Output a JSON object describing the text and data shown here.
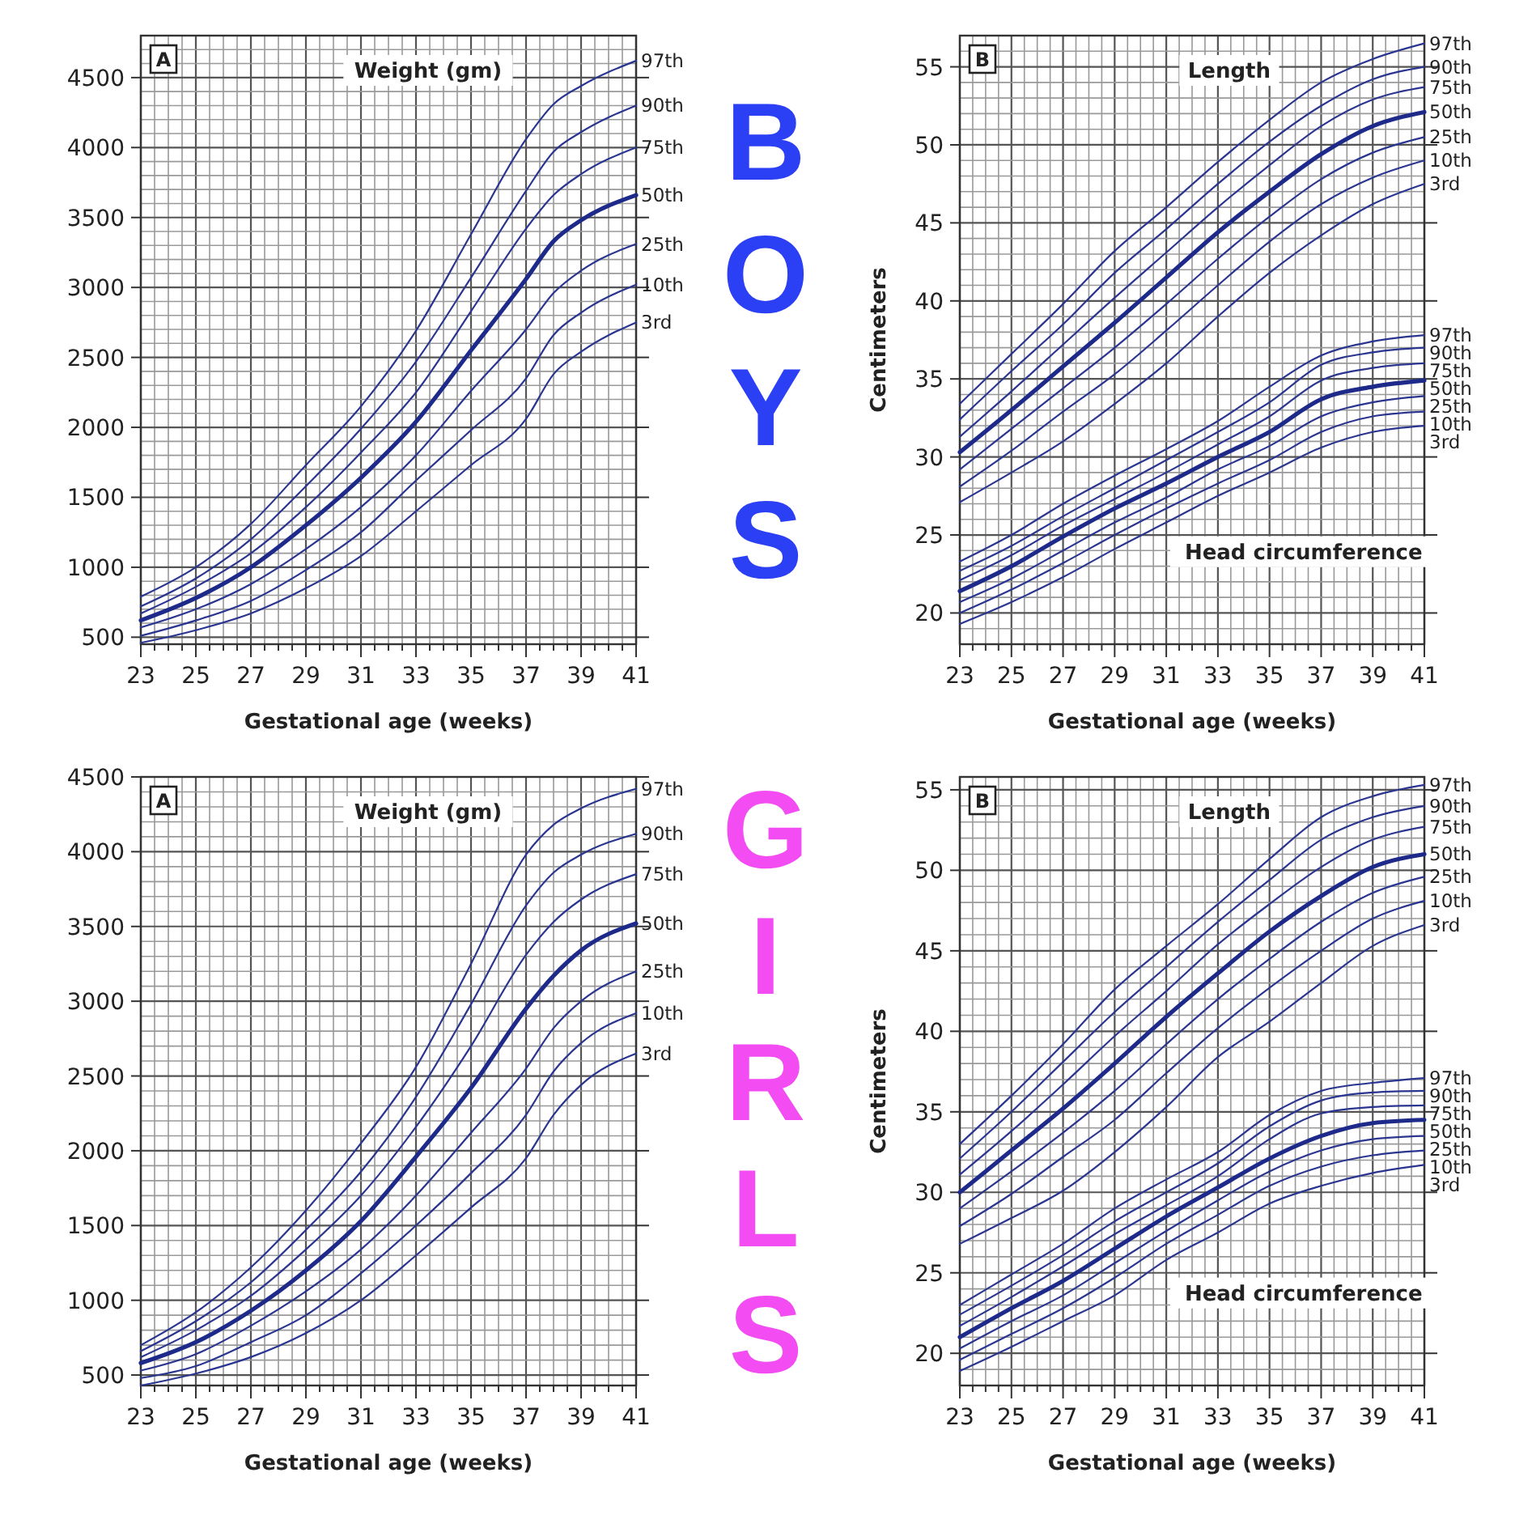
{
  "chart_data": [
    {
      "type": "line",
      "title": "Weight (gm)",
      "xlabel": "Gestational age (weeks)",
      "annotations": [
        "A",
        "BOYS"
      ],
      "grid": true,
      "marker": "none",
      "line_style": "solid",
      "x": [
        23,
        25,
        27,
        29,
        31,
        33,
        35,
        37,
        38,
        39,
        41
      ],
      "xlim": [
        23,
        41
      ],
      "xticks": [
        23,
        {
          "value": 23.5,
          "label": null
        },
        {
          "value": 24,
          "label": null
        },
        {
          "value": 24.5,
          "label": null
        },
        25,
        {
          "value": 25.5,
          "label": null
        },
        {
          "value": 26,
          "label": null
        },
        {
          "value": 26.5,
          "label": null
        },
        27,
        {
          "value": 27.5,
          "label": null
        },
        {
          "value": 28,
          "label": null
        },
        {
          "value": 28.5,
          "label": null
        },
        29,
        {
          "value": 29.5,
          "label": null
        },
        {
          "value": 30,
          "label": null
        },
        {
          "value": 30.5,
          "label": null
        },
        31,
        {
          "value": 31.5,
          "label": null
        },
        {
          "value": 32,
          "label": null
        },
        {
          "value": 32.5,
          "label": null
        },
        33,
        {
          "value": 33.5,
          "label": null
        },
        {
          "value": 34,
          "label": null
        },
        {
          "value": 34.5,
          "label": null
        },
        35,
        {
          "value": 35.5,
          "label": null
        },
        {
          "value": 36,
          "label": null
        },
        {
          "value": 36.5,
          "label": null
        },
        37,
        {
          "value": 37.5,
          "label": null
        },
        {
          "value": 38,
          "label": null
        },
        {
          "value": 38.5,
          "label": null
        },
        39,
        {
          "value": 39.5,
          "label": null
        },
        {
          "value": 40,
          "label": null
        },
        {
          "value": 40.5,
          "label": null
        },
        41
      ],
      "ylim": [
        450,
        4800
      ],
      "yticks": [
        500,
        {
          "value": 600,
          "label": null
        },
        {
          "value": 700,
          "label": null
        },
        {
          "value": 800,
          "label": null
        },
        {
          "value": 900,
          "label": null
        },
        1000,
        {
          "value": 1100,
          "label": null
        },
        {
          "value": 1200,
          "label": null
        },
        {
          "value": 1300,
          "label": null
        },
        {
          "value": 1400,
          "label": null
        },
        1500,
        {
          "value": 1600,
          "label": null
        },
        {
          "value": 1700,
          "label": null
        },
        {
          "value": 1800,
          "label": null
        },
        {
          "value": 1900,
          "label": null
        },
        2000,
        {
          "value": 2100,
          "label": null
        },
        {
          "value": 2200,
          "label": null
        },
        {
          "value": 2300,
          "label": null
        },
        {
          "value": 2400,
          "label": null
        },
        2500,
        {
          "value": 2600,
          "label": null
        },
        {
          "value": 2700,
          "label": null
        },
        {
          "value": 2800,
          "label": null
        },
        {
          "value": 2900,
          "label": null
        },
        3000,
        {
          "value": 3100,
          "label": null
        },
        {
          "value": 3200,
          "label": null
        },
        {
          "value": 3300,
          "label": null
        },
        {
          "value": 3400,
          "label": null
        },
        3500,
        {
          "value": 3600,
          "label": null
        },
        {
          "value": 3700,
          "label": null
        },
        {
          "value": 3800,
          "label": null
        },
        {
          "value": 3900,
          "label": null
        },
        4000,
        {
          "value": 4100,
          "label": null
        },
        {
          "value": 4200,
          "label": null
        },
        {
          "value": 4300,
          "label": null
        },
        {
          "value": 4400,
          "label": null
        },
        4500,
        {
          "value": 4600,
          "label": null
        },
        {
          "value": 4700,
          "label": null
        }
      ],
      "series": [
        {
          "name": "97th",
          "color": "#2a3590",
          "values": [
            790,
            1000,
            1310,
            1730,
            2150,
            2690,
            3380,
            4060,
            4310,
            4440,
            4620
          ]
        },
        {
          "name": "90th",
          "color": "#2a3590",
          "values": [
            720,
            920,
            1200,
            1580,
            1990,
            2470,
            3070,
            3690,
            3970,
            4110,
            4300
          ]
        },
        {
          "name": "75th",
          "color": "#2a3590",
          "values": [
            670,
            860,
            1100,
            1430,
            1820,
            2250,
            2830,
            3420,
            3660,
            3810,
            4000
          ]
        },
        {
          "name": "50th",
          "color": "#1e2a8a",
          "values": [
            620,
            780,
            1000,
            1300,
            1640,
            2040,
            2550,
            3060,
            3330,
            3480,
            3660
          ]
        },
        {
          "name": "25th",
          "color": "#2a3590",
          "values": [
            570,
            700,
            880,
            1130,
            1430,
            1800,
            2260,
            2700,
            2960,
            3120,
            3310
          ]
        },
        {
          "name": "10th",
          "color": "#2a3590",
          "values": [
            510,
            620,
            760,
            980,
            1250,
            1620,
            1980,
            2350,
            2660,
            2820,
            3020
          ]
        },
        {
          "name": "3rd",
          "color": "#2a3590",
          "values": [
            460,
            550,
            670,
            850,
            1080,
            1400,
            1730,
            2060,
            2380,
            2540,
            2750
          ]
        }
      ]
    },
    {
      "type": "line",
      "title": "Length",
      "xlabel": "Gestational age (weeks)",
      "ylabel": "Centimeters",
      "annotations": [
        "B",
        "Head circumference"
      ],
      "grid": true,
      "marker": "none",
      "line_style": "solid",
      "x": [
        23,
        25,
        27,
        29,
        31,
        33,
        35,
        37,
        39,
        41
      ],
      "xlim": [
        23,
        41
      ],
      "xticks": [
        23,
        {
          "value": 23.5,
          "label": null
        },
        {
          "value": 24,
          "label": null
        },
        {
          "value": 24.5,
          "label": null
        },
        25,
        {
          "value": 25.5,
          "label": null
        },
        {
          "value": 26,
          "label": null
        },
        {
          "value": 26.5,
          "label": null
        },
        27,
        {
          "value": 27.5,
          "label": null
        },
        {
          "value": 28,
          "label": null
        },
        {
          "value": 28.5,
          "label": null
        },
        29,
        {
          "value": 29.5,
          "label": null
        },
        {
          "value": 30,
          "label": null
        },
        {
          "value": 30.5,
          "label": null
        },
        31,
        {
          "value": 31.5,
          "label": null
        },
        {
          "value": 32,
          "label": null
        },
        {
          "value": 32.5,
          "label": null
        },
        33,
        {
          "value": 33.5,
          "label": null
        },
        {
          "value": 34,
          "label": null
        },
        {
          "value": 34.5,
          "label": null
        },
        35,
        {
          "value": 35.5,
          "label": null
        },
        {
          "value": 36,
          "label": null
        },
        {
          "value": 36.5,
          "label": null
        },
        37,
        {
          "value": 37.5,
          "label": null
        },
        {
          "value": 38,
          "label": null
        },
        {
          "value": 38.5,
          "label": null
        },
        39,
        {
          "value": 39.5,
          "label": null
        },
        {
          "value": 40,
          "label": null
        },
        {
          "value": 40.5,
          "label": null
        },
        41
      ],
      "ylim": [
        18.0,
        57
      ],
      "yticks": [
        {
          "value": 19,
          "label": null
        },
        20,
        {
          "value": 21,
          "label": null
        },
        {
          "value": 22,
          "label": null
        },
        {
          "value": 23,
          "label": null
        },
        {
          "value": 24,
          "label": null
        },
        25,
        {
          "value": 26,
          "label": null
        },
        {
          "value": 27,
          "label": null
        },
        {
          "value": 28,
          "label": null
        },
        {
          "value": 29,
          "label": null
        },
        30,
        {
          "value": 31,
          "label": null
        },
        {
          "value": 32,
          "label": null
        },
        {
          "value": 33,
          "label": null
        },
        {
          "value": 34,
          "label": null
        },
        35,
        {
          "value": 36,
          "label": null
        },
        {
          "value": 37,
          "label": null
        },
        {
          "value": 38,
          "label": null
        },
        {
          "value": 39,
          "label": null
        },
        40,
        {
          "value": 41,
          "label": null
        },
        {
          "value": 42,
          "label": null
        },
        {
          "value": 43,
          "label": null
        },
        {
          "value": 44,
          "label": null
        },
        45,
        {
          "value": 46,
          "label": null
        },
        {
          "value": 47,
          "label": null
        },
        {
          "value": 48,
          "label": null
        },
        {
          "value": 49,
          "label": null
        },
        50,
        {
          "value": 51,
          "label": null
        },
        {
          "value": 52,
          "label": null
        },
        {
          "value": 53,
          "label": null
        },
        {
          "value": 54,
          "label": null
        },
        55,
        {
          "value": 56,
          "label": null
        }
      ],
      "series": [
        {
          "name": "97th",
          "color": "#2a3590",
          "values": [
            33.4,
            36.6,
            39.8,
            43.2,
            46.0,
            48.9,
            51.6,
            54.0,
            55.5,
            56.5
          ]
        },
        {
          "name": "90th",
          "color": "#2a3590",
          "values": [
            32.4,
            35.5,
            38.5,
            41.8,
            44.6,
            47.5,
            50.2,
            52.5,
            54.2,
            55.0
          ]
        },
        {
          "name": "75th",
          "color": "#2a3590",
          "values": [
            31.3,
            34.2,
            37.2,
            40.2,
            43.1,
            46.0,
            48.7,
            51.2,
            52.9,
            53.7
          ]
        },
        {
          "name": "50th",
          "color": "#1e2a8a",
          "values": [
            30.3,
            33.0,
            35.8,
            38.6,
            41.5,
            44.4,
            47.0,
            49.4,
            51.2,
            52.1
          ]
        },
        {
          "name": "25th",
          "color": "#2a3590",
          "values": [
            29.2,
            31.8,
            34.4,
            37.0,
            39.8,
            42.7,
            45.4,
            47.8,
            49.5,
            50.5
          ]
        },
        {
          "name": "10th",
          "color": "#2a3590",
          "values": [
            28.1,
            30.4,
            32.9,
            35.3,
            38.1,
            41.0,
            43.8,
            46.2,
            47.9,
            49.0
          ]
        },
        {
          "name": "3rd",
          "color": "#2a3590",
          "values": [
            27.1,
            29.0,
            31.0,
            33.4,
            36.0,
            39.0,
            41.8,
            44.2,
            46.2,
            47.5
          ]
        },
        {
          "name": "97th",
          "color": "#2a3590",
          "values": [
            23.3,
            25.0,
            27.0,
            28.8,
            30.5,
            32.3,
            34.5,
            36.5,
            37.4,
            37.8
          ]
        },
        {
          "name": "90th",
          "color": "#2a3590",
          "values": [
            22.7,
            24.3,
            26.2,
            28.0,
            29.8,
            31.6,
            33.5,
            35.9,
            36.7,
            37.0
          ]
        },
        {
          "name": "75th",
          "color": "#2a3590",
          "values": [
            22.1,
            23.7,
            25.6,
            27.3,
            29.0,
            30.8,
            32.6,
            34.9,
            35.7,
            36.0
          ]
        },
        {
          "name": "50th",
          "color": "#1e2a8a",
          "values": [
            21.4,
            23.0,
            24.9,
            26.7,
            28.3,
            30.0,
            31.6,
            33.7,
            34.5,
            34.9
          ]
        },
        {
          "name": "25th",
          "color": "#2a3590",
          "values": [
            20.7,
            22.2,
            24.0,
            25.8,
            27.4,
            29.2,
            30.7,
            32.6,
            33.5,
            33.9
          ]
        },
        {
          "name": "10th",
          "color": "#2a3590",
          "values": [
            20.0,
            21.5,
            23.2,
            25.0,
            26.7,
            28.3,
            29.8,
            31.6,
            32.6,
            32.9
          ]
        },
        {
          "name": "3rd",
          "color": "#2a3590",
          "values": [
            19.3,
            20.7,
            22.3,
            24.1,
            25.8,
            27.5,
            29.0,
            30.6,
            31.6,
            32.0
          ]
        }
      ]
    },
    {
      "type": "line",
      "title": "Weight (gm)",
      "xlabel": "Gestational age (weeks)",
      "annotations": [
        "A",
        "GIRLS"
      ],
      "grid": true,
      "marker": "none",
      "line_style": "solid",
      "x": [
        23,
        25,
        27,
        29,
        31,
        33,
        35,
        37,
        38,
        39,
        41
      ],
      "xlim": [
        23,
        41
      ],
      "xticks": [
        23,
        {
          "value": 23.5,
          "label": null
        },
        {
          "value": 24,
          "label": null
        },
        {
          "value": 24.5,
          "label": null
        },
        25,
        {
          "value": 25.5,
          "label": null
        },
        {
          "value": 26,
          "label": null
        },
        {
          "value": 26.5,
          "label": null
        },
        27,
        {
          "value": 27.5,
          "label": null
        },
        {
          "value": 28,
          "label": null
        },
        {
          "value": 28.5,
          "label": null
        },
        29,
        {
          "value": 29.5,
          "label": null
        },
        {
          "value": 30,
          "label": null
        },
        {
          "value": 30.5,
          "label": null
        },
        31,
        {
          "value": 31.5,
          "label": null
        },
        {
          "value": 32,
          "label": null
        },
        {
          "value": 32.5,
          "label": null
        },
        33,
        {
          "value": 33.5,
          "label": null
        },
        {
          "value": 34,
          "label": null
        },
        {
          "value": 34.5,
          "label": null
        },
        35,
        {
          "value": 35.5,
          "label": null
        },
        {
          "value": 36,
          "label": null
        },
        {
          "value": 36.5,
          "label": null
        },
        37,
        {
          "value": 37.5,
          "label": null
        },
        {
          "value": 38,
          "label": null
        },
        {
          "value": 38.5,
          "label": null
        },
        39,
        {
          "value": 39.5,
          "label": null
        },
        {
          "value": 40,
          "label": null
        },
        {
          "value": 40.5,
          "label": null
        },
        41
      ],
      "ylim": [
        430,
        4500
      ],
      "yticks": [
        500,
        {
          "value": 600,
          "label": null
        },
        {
          "value": 700,
          "label": null
        },
        {
          "value": 800,
          "label": null
        },
        {
          "value": 900,
          "label": null
        },
        1000,
        {
          "value": 1100,
          "label": null
        },
        {
          "value": 1200,
          "label": null
        },
        {
          "value": 1300,
          "label": null
        },
        {
          "value": 1400,
          "label": null
        },
        1500,
        {
          "value": 1600,
          "label": null
        },
        {
          "value": 1700,
          "label": null
        },
        {
          "value": 1800,
          "label": null
        },
        {
          "value": 1900,
          "label": null
        },
        2000,
        {
          "value": 2100,
          "label": null
        },
        {
          "value": 2200,
          "label": null
        },
        {
          "value": 2300,
          "label": null
        },
        {
          "value": 2400,
          "label": null
        },
        2500,
        {
          "value": 2600,
          "label": null
        },
        {
          "value": 2700,
          "label": null
        },
        {
          "value": 2800,
          "label": null
        },
        {
          "value": 2900,
          "label": null
        },
        3000,
        {
          "value": 3100,
          "label": null
        },
        {
          "value": 3200,
          "label": null
        },
        {
          "value": 3300,
          "label": null
        },
        {
          "value": 3400,
          "label": null
        },
        3500,
        {
          "value": 3600,
          "label": null
        },
        {
          "value": 3700,
          "label": null
        },
        {
          "value": 3800,
          "label": null
        },
        {
          "value": 3900,
          "label": null
        },
        4000,
        {
          "value": 4100,
          "label": null
        },
        {
          "value": 4200,
          "label": null
        },
        {
          "value": 4300,
          "label": null
        },
        {
          "value": 4400,
          "label": null
        },
        4500
      ],
      "series": [
        {
          "name": "97th",
          "color": "#2a3590",
          "values": [
            700,
            920,
            1220,
            1600,
            2050,
            2560,
            3250,
            3980,
            4180,
            4290,
            4420
          ]
        },
        {
          "name": "90th",
          "color": "#2a3590",
          "values": [
            660,
            860,
            1120,
            1470,
            1860,
            2360,
            2980,
            3640,
            3860,
            3980,
            4120
          ]
        },
        {
          "name": "75th",
          "color": "#2a3590",
          "values": [
            620,
            800,
            1030,
            1340,
            1700,
            2160,
            2700,
            3310,
            3530,
            3680,
            3850
          ]
        },
        {
          "name": "50th",
          "color": "#1e2a8a",
          "values": [
            580,
            720,
            930,
            1200,
            1530,
            1960,
            2420,
            2950,
            3170,
            3340,
            3520
          ]
        },
        {
          "name": "25th",
          "color": "#2a3590",
          "values": [
            530,
            640,
            830,
            1060,
            1340,
            1700,
            2120,
            2550,
            2820,
            3000,
            3200
          ]
        },
        {
          "name": "10th",
          "color": "#2a3590",
          "values": [
            480,
            560,
            720,
            900,
            1180,
            1500,
            1850,
            2240,
            2530,
            2720,
            2920
          ]
        },
        {
          "name": "3rd",
          "color": "#2a3590",
          "values": [
            430,
            510,
            620,
            780,
            1000,
            1300,
            1620,
            1950,
            2240,
            2440,
            2650
          ]
        }
      ]
    },
    {
      "type": "line",
      "title": "Length",
      "xlabel": "Gestational age (weeks)",
      "ylabel": "Centimeters",
      "annotations": [
        "B",
        "Head circumference"
      ],
      "grid": true,
      "marker": "none",
      "line_style": "solid",
      "x": [
        23,
        25,
        27,
        29,
        31,
        33,
        35,
        37,
        39,
        41
      ],
      "xlim": [
        23,
        41
      ],
      "xticks": [
        23,
        {
          "value": 23.5,
          "label": null
        },
        {
          "value": 24,
          "label": null
        },
        {
          "value": 24.5,
          "label": null
        },
        25,
        {
          "value": 25.5,
          "label": null
        },
        {
          "value": 26,
          "label": null
        },
        {
          "value": 26.5,
          "label": null
        },
        27,
        {
          "value": 27.5,
          "label": null
        },
        {
          "value": 28,
          "label": null
        },
        {
          "value": 28.5,
          "label": null
        },
        29,
        {
          "value": 29.5,
          "label": null
        },
        {
          "value": 30,
          "label": null
        },
        {
          "value": 30.5,
          "label": null
        },
        31,
        {
          "value": 31.5,
          "label": null
        },
        {
          "value": 32,
          "label": null
        },
        {
          "value": 32.5,
          "label": null
        },
        33,
        {
          "value": 33.5,
          "label": null
        },
        {
          "value": 34,
          "label": null
        },
        {
          "value": 34.5,
          "label": null
        },
        35,
        {
          "value": 35.5,
          "label": null
        },
        {
          "value": 36,
          "label": null
        },
        {
          "value": 36.5,
          "label": null
        },
        37,
        {
          "value": 37.5,
          "label": null
        },
        {
          "value": 38,
          "label": null
        },
        {
          "value": 38.5,
          "label": null
        },
        39,
        {
          "value": 39.5,
          "label": null
        },
        {
          "value": 40,
          "label": null
        },
        {
          "value": 40.5,
          "label": null
        },
        41
      ],
      "ylim": [
        18.0,
        55.8
      ],
      "yticks": [
        {
          "value": 19,
          "label": null
        },
        20,
        {
          "value": 21,
          "label": null
        },
        {
          "value": 22,
          "label": null
        },
        {
          "value": 23,
          "label": null
        },
        {
          "value": 24,
          "label": null
        },
        25,
        {
          "value": 26,
          "label": null
        },
        {
          "value": 27,
          "label": null
        },
        {
          "value": 28,
          "label": null
        },
        {
          "value": 29,
          "label": null
        },
        30,
        {
          "value": 31,
          "label": null
        },
        {
          "value": 32,
          "label": null
        },
        {
          "value": 33,
          "label": null
        },
        {
          "value": 34,
          "label": null
        },
        35,
        {
          "value": 36,
          "label": null
        },
        {
          "value": 37,
          "label": null
        },
        {
          "value": 38,
          "label": null
        },
        {
          "value": 39,
          "label": null
        },
        40,
        {
          "value": 41,
          "label": null
        },
        {
          "value": 42,
          "label": null
        },
        {
          "value": 43,
          "label": null
        },
        {
          "value": 44,
          "label": null
        },
        45,
        {
          "value": 46,
          "label": null
        },
        {
          "value": 47,
          "label": null
        },
        {
          "value": 48,
          "label": null
        },
        {
          "value": 49,
          "label": null
        },
        50,
        {
          "value": 51,
          "label": null
        },
        {
          "value": 52,
          "label": null
        },
        {
          "value": 53,
          "label": null
        },
        {
          "value": 54,
          "label": null
        },
        55
      ],
      "series": [
        {
          "name": "97th",
          "color": "#2a3590",
          "values": [
            33.0,
            36.0,
            39.2,
            42.6,
            45.3,
            47.9,
            50.7,
            53.3,
            54.6,
            55.3
          ]
        },
        {
          "name": "90th",
          "color": "#2a3590",
          "values": [
            32.1,
            35.0,
            38.1,
            41.2,
            44.0,
            46.8,
            49.4,
            51.9,
            53.3,
            54.0
          ]
        },
        {
          "name": "75th",
          "color": "#2a3590",
          "values": [
            31.1,
            33.8,
            36.7,
            39.7,
            42.5,
            45.4,
            47.9,
            50.2,
            51.9,
            52.7
          ]
        },
        {
          "name": "50th",
          "color": "#1e2a8a",
          "values": [
            30.0,
            32.6,
            35.2,
            38.0,
            40.9,
            43.6,
            46.2,
            48.4,
            50.2,
            51.0
          ]
        },
        {
          "name": "25th",
          "color": "#2a3590",
          "values": [
            29.0,
            31.3,
            33.7,
            36.3,
            39.2,
            42.0,
            44.5,
            46.8,
            48.6,
            49.6
          ]
        },
        {
          "name": "10th",
          "color": "#2a3590",
          "values": [
            27.9,
            29.9,
            32.2,
            34.5,
            37.4,
            40.2,
            42.7,
            45.0,
            47.0,
            48.1
          ]
        },
        {
          "name": "3rd",
          "color": "#2a3590",
          "values": [
            26.8,
            28.4,
            30.1,
            32.5,
            35.3,
            38.4,
            40.6,
            43.0,
            45.3,
            46.6
          ]
        },
        {
          "name": "97th",
          "color": "#2a3590",
          "values": [
            23.0,
            24.9,
            26.8,
            29.0,
            30.8,
            32.5,
            34.8,
            36.3,
            36.8,
            37.1
          ]
        },
        {
          "name": "90th",
          "color": "#2a3590",
          "values": [
            22.4,
            24.2,
            26.1,
            28.2,
            30.0,
            31.8,
            34.1,
            35.7,
            36.2,
            36.3
          ]
        },
        {
          "name": "75th",
          "color": "#2a3590",
          "values": [
            21.7,
            23.5,
            25.4,
            27.4,
            29.2,
            31.0,
            33.3,
            34.9,
            35.3,
            35.4
          ]
        },
        {
          "name": "50th",
          "color": "#1e2a8a",
          "values": [
            21.0,
            22.8,
            24.5,
            26.5,
            28.5,
            30.3,
            32.1,
            33.5,
            34.3,
            34.5
          ]
        },
        {
          "name": "25th",
          "color": "#2a3590",
          "values": [
            20.3,
            22.0,
            23.6,
            25.6,
            27.6,
            29.5,
            31.3,
            32.6,
            33.3,
            33.5
          ]
        },
        {
          "name": "10th",
          "color": "#2a3590",
          "values": [
            19.6,
            21.2,
            22.8,
            24.7,
            26.8,
            28.6,
            30.4,
            31.6,
            32.3,
            32.6
          ]
        },
        {
          "name": "3rd",
          "color": "#2a3590",
          "values": [
            18.9,
            20.4,
            22.0,
            23.6,
            25.8,
            27.5,
            29.3,
            30.4,
            31.2,
            31.7
          ]
        }
      ]
    }
  ]
}
